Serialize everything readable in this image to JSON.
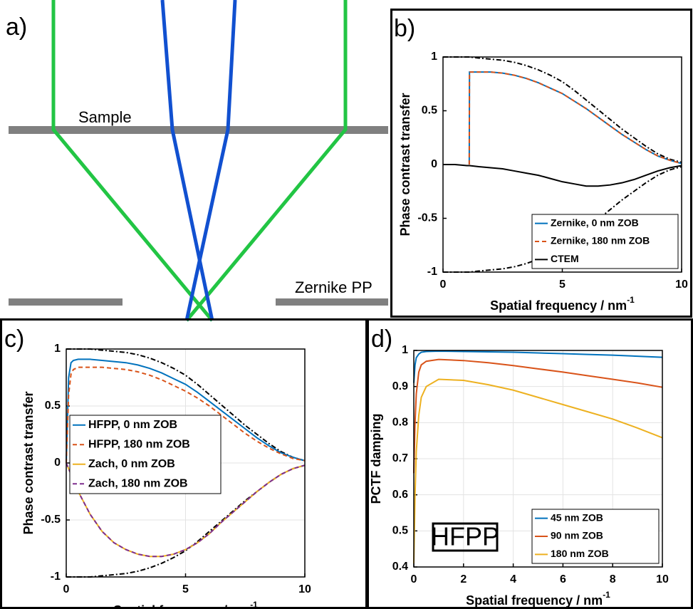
{
  "diagram": {
    "label": "a)",
    "sample": "Sample",
    "plate": "Zernike PP"
  },
  "chart_data": [
    {
      "type": "line",
      "label": "b)",
      "xlabel": "Spatial frequency / nm",
      "xlabel_exponent": "-1",
      "ylabel": "Phase contrast transfer",
      "xlim": [
        0,
        10
      ],
      "xticks": [
        0,
        5,
        10
      ],
      "ylim": [
        -1,
        1
      ],
      "yticks": [
        -1,
        -0.5,
        0,
        0.5,
        1
      ],
      "grid": false,
      "legend": "lower right",
      "x": [
        0,
        0.5,
        1,
        1.1,
        1.11,
        1.5,
        2,
        2.5,
        3,
        3.5,
        4,
        4.5,
        5,
        5.5,
        6,
        6.5,
        7,
        7.5,
        8,
        8.5,
        9,
        9.5,
        10
      ],
      "series": [
        {
          "color": "#000000",
          "style": "dashdot",
          "values": [
            1,
            1,
            1,
            1,
            1,
            0.99,
            0.98,
            0.97,
            0.95,
            0.92,
            0.88,
            0.83,
            0.77,
            0.69,
            0.6,
            0.51,
            0.42,
            0.33,
            0.25,
            0.17,
            0.1,
            0.05,
            0.02
          ]
        },
        {
          "color": "#000000",
          "style": "dashdot",
          "values": [
            -1,
            -1,
            -1,
            -1,
            -1,
            -0.99,
            -0.98,
            -0.97,
            -0.95,
            -0.92,
            -0.88,
            -0.83,
            -0.77,
            -0.69,
            -0.6,
            -0.51,
            -0.42,
            -0.33,
            -0.25,
            -0.17,
            -0.1,
            -0.05,
            -0.02
          ]
        },
        {
          "name": "Zernike, 0 nm ZOB",
          "color": "#0072BD",
          "style": "solid",
          "values": [
            null,
            null,
            null,
            0,
            0.86,
            0.86,
            0.86,
            0.85,
            0.83,
            0.8,
            0.76,
            0.71,
            0.66,
            0.59,
            0.52,
            0.44,
            0.36,
            0.28,
            0.21,
            0.14,
            0.08,
            0.04,
            0.01
          ]
        },
        {
          "name": "Zernike, 180 nm ZOB",
          "color": "#D95319",
          "style": "dashed",
          "values": [
            null,
            null,
            null,
            0,
            0.86,
            0.86,
            0.86,
            0.85,
            0.83,
            0.8,
            0.76,
            0.71,
            0.66,
            0.59,
            0.52,
            0.44,
            0.36,
            0.28,
            0.21,
            0.14,
            0.08,
            0.04,
            0.01
          ]
        },
        {
          "name": "CTEM",
          "color": "#000000",
          "style": "solid",
          "values": [
            0,
            0,
            -0.01,
            -0.01,
            -0.01,
            -0.02,
            -0.03,
            -0.04,
            -0.06,
            -0.08,
            -0.1,
            -0.13,
            -0.16,
            -0.18,
            -0.2,
            -0.2,
            -0.19,
            -0.17,
            -0.14,
            -0.1,
            -0.06,
            -0.03,
            -0.01
          ]
        }
      ]
    },
    {
      "type": "line",
      "label": "c)",
      "xlabel": "Spatial frequency / nm",
      "xlabel_exponent": "-1",
      "ylabel": "Phase contrast transfer",
      "xlim": [
        0,
        10
      ],
      "xticks": [
        0,
        5,
        10
      ],
      "ylim": [
        -1,
        1
      ],
      "yticks": [
        -1,
        -0.5,
        0,
        0.5,
        1
      ],
      "grid": true,
      "legend": "center left",
      "x": [
        0,
        0.1,
        0.2,
        0.3,
        0.5,
        1,
        1.5,
        2,
        2.5,
        3,
        3.5,
        4,
        4.5,
        5,
        5.5,
        6,
        6.5,
        7,
        7.5,
        8,
        8.5,
        9,
        9.5,
        10
      ],
      "series": [
        {
          "color": "#000000",
          "style": "dashdot",
          "values": [
            1,
            1,
            1,
            1,
            1,
            1,
            0.99,
            0.98,
            0.97,
            0.95,
            0.92,
            0.88,
            0.83,
            0.77,
            0.69,
            0.6,
            0.51,
            0.42,
            0.33,
            0.25,
            0.17,
            0.1,
            0.05,
            0.02
          ]
        },
        {
          "color": "#000000",
          "style": "dashdot",
          "values": [
            -1,
            -1,
            -1,
            -1,
            -1,
            -1,
            -0.99,
            -0.98,
            -0.97,
            -0.95,
            -0.92,
            -0.88,
            -0.83,
            -0.77,
            -0.69,
            -0.6,
            -0.51,
            -0.42,
            -0.33,
            -0.25,
            -0.17,
            -0.1,
            -0.05,
            -0.02
          ]
        },
        {
          "name": "HFPP, 0 nm ZOB",
          "color": "#0072BD",
          "style": "solid",
          "values": [
            0,
            0.75,
            0.88,
            0.9,
            0.91,
            0.91,
            0.9,
            0.89,
            0.88,
            0.86,
            0.83,
            0.79,
            0.74,
            0.69,
            0.62,
            0.54,
            0.46,
            0.38,
            0.3,
            0.22,
            0.15,
            0.09,
            0.05,
            0.02
          ]
        },
        {
          "name": "HFPP, 180 nm ZOB",
          "color": "#D95319",
          "style": "dashed",
          "values": [
            0,
            0.6,
            0.78,
            0.82,
            0.84,
            0.84,
            0.84,
            0.83,
            0.82,
            0.8,
            0.77,
            0.73,
            0.68,
            0.63,
            0.57,
            0.5,
            0.42,
            0.34,
            0.26,
            0.19,
            0.13,
            0.08,
            0.04,
            0.02
          ]
        },
        {
          "name": "Zach, 0 nm ZOB",
          "color": "#EDB120",
          "style": "solid",
          "values": [
            0,
            -0.05,
            -0.1,
            -0.15,
            -0.25,
            -0.45,
            -0.6,
            -0.7,
            -0.76,
            -0.8,
            -0.82,
            -0.82,
            -0.8,
            -0.76,
            -0.7,
            -0.62,
            -0.52,
            -0.43,
            -0.34,
            -0.25,
            -0.17,
            -0.1,
            -0.05,
            -0.02
          ]
        },
        {
          "name": "Zach, 180 nm ZOB",
          "color": "#7E2F8E",
          "style": "dashed",
          "values": [
            0,
            -0.05,
            -0.1,
            -0.15,
            -0.25,
            -0.45,
            -0.6,
            -0.7,
            -0.76,
            -0.8,
            -0.82,
            -0.82,
            -0.8,
            -0.76,
            -0.7,
            -0.62,
            -0.52,
            -0.43,
            -0.34,
            -0.25,
            -0.17,
            -0.1,
            -0.05,
            -0.02
          ]
        }
      ]
    },
    {
      "type": "line",
      "label": "d)",
      "xlabel": "Spatial frequency / nm",
      "xlabel_exponent": "-1",
      "ylabel": "PCTF damping",
      "annotation": "HFPP",
      "xlim": [
        0,
        10
      ],
      "xticks": [
        0,
        2,
        4,
        6,
        8,
        10
      ],
      "ylim": [
        0.4,
        1
      ],
      "yticks": [
        0.4,
        0.5,
        0.6,
        0.7,
        0.8,
        0.9,
        1
      ],
      "grid": true,
      "legend": "lower right",
      "x": [
        0,
        0.05,
        0.1,
        0.2,
        0.3,
        0.5,
        1,
        2,
        3,
        4,
        5,
        6,
        7,
        8,
        9,
        10
      ],
      "series": [
        {
          "name": "45 nm ZOB",
          "color": "#0072BD",
          "style": "solid",
          "values": [
            0.91,
            0.96,
            0.98,
            0.99,
            0.995,
            0.997,
            0.998,
            0.997,
            0.996,
            0.995,
            0.993,
            0.991,
            0.989,
            0.987,
            0.984,
            0.981
          ]
        },
        {
          "name": "90 nm ZOB",
          "color": "#D95319",
          "style": "solid",
          "values": [
            0.66,
            0.8,
            0.88,
            0.94,
            0.96,
            0.97,
            0.975,
            0.972,
            0.966,
            0.958,
            0.949,
            0.94,
            0.93,
            0.92,
            0.91,
            0.898
          ]
        },
        {
          "name": "180 nm ZOB",
          "color": "#EDB120",
          "style": "solid",
          "values": [
            0.41,
            0.6,
            0.72,
            0.82,
            0.87,
            0.9,
            0.92,
            0.917,
            0.905,
            0.89,
            0.87,
            0.85,
            0.83,
            0.81,
            0.785,
            0.758
          ]
        }
      ]
    }
  ]
}
